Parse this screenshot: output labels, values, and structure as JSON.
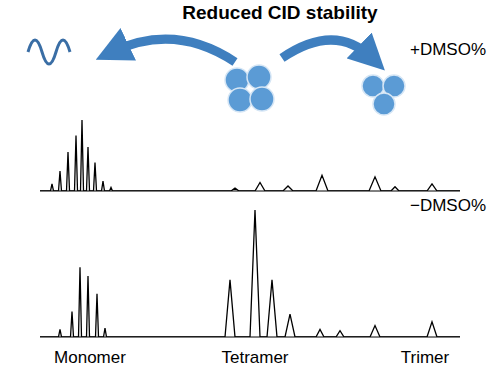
{
  "chart_data": [
    {
      "type": "line",
      "title": "Reduced CID stability",
      "x": [
        0,
        10.5,
        12,
        13.5,
        18.5,
        20,
        21.5,
        26.5,
        28,
        29.5,
        34.5,
        36,
        37.5,
        40.5,
        42,
        43.5,
        46.5,
        48,
        49.5,
        53.5,
        55,
        56.5,
        61.5,
        63,
        64.5,
        69.5,
        71,
        72.5,
        191,
        195,
        199,
        215,
        220,
        225,
        243,
        248,
        253,
        276,
        282,
        288,
        329,
        335,
        341,
        351,
        355,
        359,
        387,
        392,
        397,
        420
      ],
      "series": [
        {
          "name": "+DMSO%",
          "color": "#000000",
          "values": [
            0,
            0,
            10,
            0,
            0,
            28,
            0,
            0,
            55,
            0,
            0,
            78,
            0,
            0,
            100,
            0,
            0,
            62,
            0,
            0,
            40,
            0,
            0,
            14,
            0,
            0,
            5,
            0,
            0,
            4,
            0,
            0,
            12,
            0,
            0,
            7,
            0,
            0,
            22,
            0,
            0,
            20,
            0,
            0,
            6,
            0,
            0,
            10,
            0,
            0
          ]
        }
      ],
      "xlim": [
        0,
        420
      ],
      "ylim": [
        0,
        100
      ],
      "tick_labels": false
    },
    {
      "type": "line",
      "x": [
        0,
        18.5,
        20,
        21.5,
        30.5,
        32,
        33.5,
        38.5,
        40,
        41.5,
        46.5,
        48,
        49.5,
        55.5,
        57,
        58.5,
        63.5,
        65,
        66.5,
        185,
        190,
        195,
        210,
        215,
        220,
        227,
        232,
        237,
        245,
        250,
        255,
        276,
        280,
        284,
        296,
        300,
        304,
        330,
        335,
        340,
        387,
        392,
        397,
        420
      ],
      "series": [
        {
          "name": "−DMSO%",
          "color": "#000000",
          "values": [
            0,
            0,
            6,
            0,
            0,
            20,
            0,
            0,
            55,
            0,
            0,
            48,
            0,
            0,
            34,
            0,
            0,
            7,
            0,
            0,
            45,
            0,
            0,
            100,
            0,
            0,
            45,
            0,
            0,
            18,
            0,
            0,
            6,
            0,
            0,
            5,
            0,
            0,
            9,
            0,
            0,
            12,
            0,
            0
          ]
        }
      ],
      "xlim": [
        0,
        420
      ],
      "ylim": [
        0,
        100
      ],
      "tick_labels": false,
      "annotations": [
        "Monomer",
        "Tetramer",
        "Trimer"
      ]
    }
  ]
}
